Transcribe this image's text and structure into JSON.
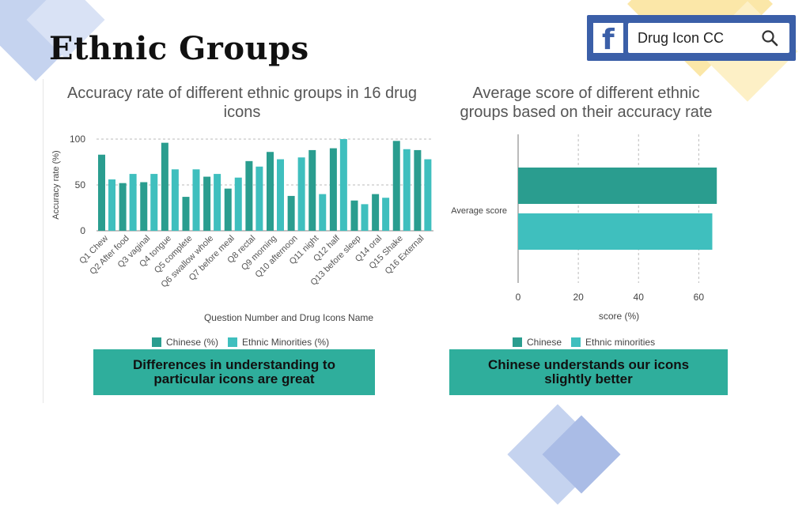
{
  "page": {
    "title": "Ethnic Groups"
  },
  "facebook": {
    "search_text": "Drug Icon CC",
    "logo_letter": "f"
  },
  "colors": {
    "chinese": "#2a9d8f",
    "minorities": "#3fbfbe",
    "note_bg": "#2fae9c",
    "fb_blue": "#3b5fa8"
  },
  "chart_data": [
    {
      "type": "bar",
      "title": "Accuracy rate of different ethnic groups in 16 drug icons",
      "xlabel": "Question Number and Drug Icons Name",
      "ylabel": "Accuracy rate (%)",
      "ylim": [
        0,
        100
      ],
      "yticks": [
        "0",
        "50",
        "100"
      ],
      "categories": [
        "Q1 Chew",
        "Q2 After food",
        "Q3 vaginal",
        "Q4 tongue",
        "Q5 complete",
        "Q6 swallow whole",
        "Q7 before meal",
        "Q8 rectal",
        "Q9 morning",
        "Q10 afternoon",
        "Q11 night",
        "Q12 half",
        "Q13 before sleep",
        "Q14 oral",
        "Q15 Shake",
        "Q16 External"
      ],
      "series": [
        {
          "name": "Chinese (%)",
          "values": [
            83,
            52,
            53,
            96,
            37,
            59,
            46,
            76,
            86,
            38,
            88,
            90,
            33,
            40,
            98,
            88
          ]
        },
        {
          "name": "Ethnic Minorities (%)",
          "values": [
            56,
            62,
            62,
            67,
            67,
            62,
            58,
            70,
            78,
            80,
            40,
            100,
            29,
            36,
            89,
            78
          ]
        }
      ],
      "grid": "horizontal dashed",
      "legend": "bottom"
    },
    {
      "type": "bar",
      "orientation": "horizontal",
      "title": "Average score of different ethnic groups based on their accuracy rate",
      "xlabel": "score (%)",
      "ylabel": "",
      "xlim": [
        0,
        67
      ],
      "xticks": [
        "0",
        "20",
        "40",
        "60"
      ],
      "categories": [
        "Average score"
      ],
      "series": [
        {
          "name": "Chinese",
          "values": [
            66
          ]
        },
        {
          "name": "Ethnic minorities",
          "values": [
            64.5
          ]
        }
      ],
      "grid": "vertical dashed",
      "legend": "bottom"
    }
  ],
  "notes": {
    "left_line1": "Differences in understanding to",
    "left_line2": "particular icons are great",
    "right_line1": "Chinese understands our icons",
    "right_line2": "slightly better"
  }
}
